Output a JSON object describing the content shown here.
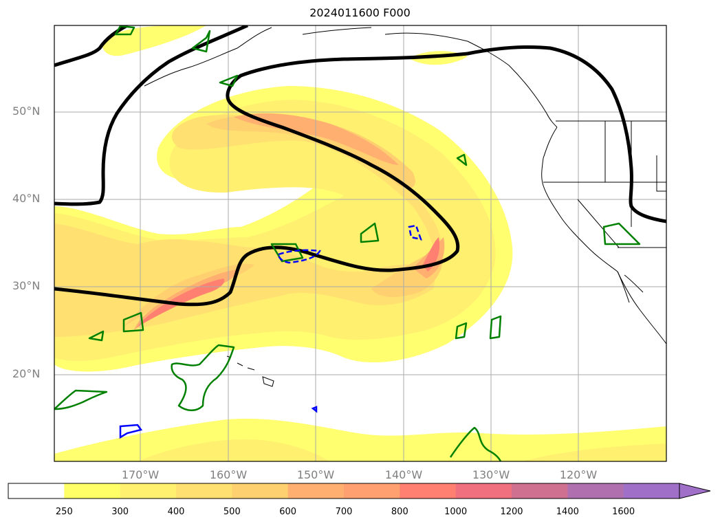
{
  "title": "2024011600 F000",
  "lat_labels": [
    "50°N",
    "40°N",
    "30°N",
    "20°N"
  ],
  "lon_labels": [
    "170°W",
    "160°W",
    "150°W",
    "140°W",
    "130°W",
    "120°W"
  ],
  "colorbar": {
    "labels": [
      "250",
      "300",
      "400",
      "500",
      "600",
      "700",
      "800",
      "1000",
      "1200",
      "1400",
      "1600"
    ],
    "colors": [
      "#ffffff",
      "#ffff66",
      "#fff070",
      "#ffe070",
      "#ffd070",
      "#ffb070",
      "#ffa070",
      "#ff8070",
      "#f07080",
      "#d07090",
      "#b070b0",
      "#a070c8"
    ]
  },
  "colors": {
    "contour_black": "#000000",
    "contour_green": "#008000",
    "contour_blue": "#0000ff",
    "grid": "#aaaaaa",
    "coast": "#000000"
  }
}
